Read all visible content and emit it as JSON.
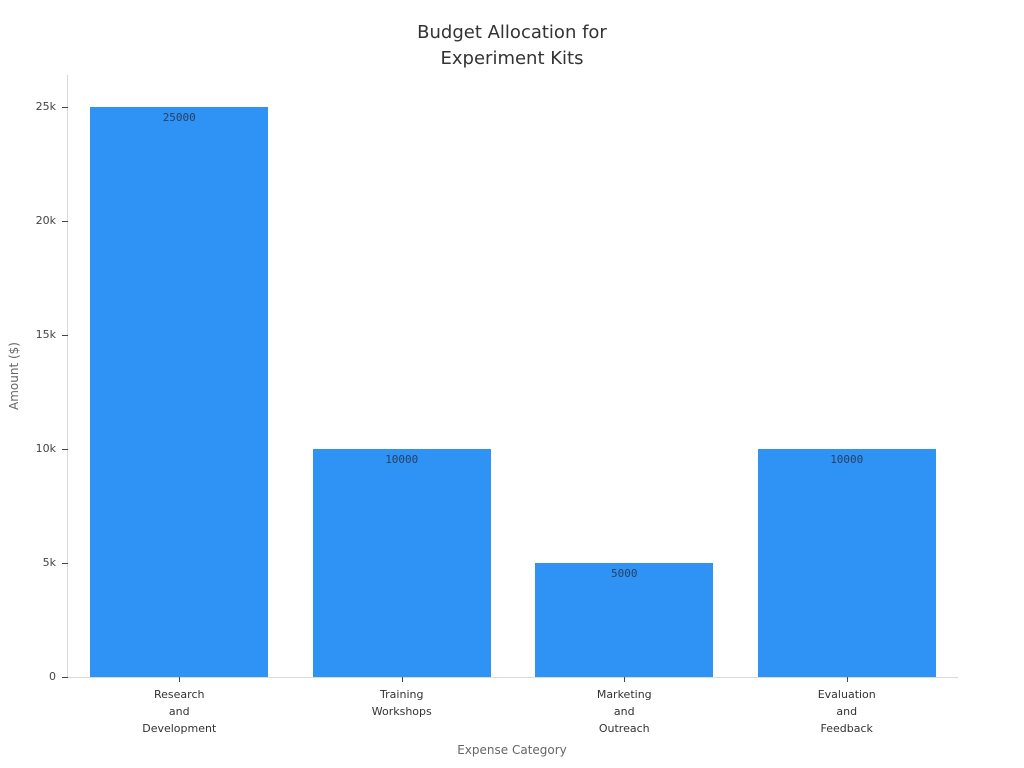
{
  "chart_data": {
    "type": "bar",
    "title": "Budget Allocation for\nExperiment Kits",
    "xlabel": "Expense Category",
    "ylabel": "Amount ($)",
    "categories": [
      "Research\nand\nDevelopment",
      "Training\nWorkshops",
      "Marketing\nand\nOutreach",
      "Evaluation\nand\nFeedback"
    ],
    "values": [
      25000,
      10000,
      5000,
      10000
    ],
    "bar_labels": [
      "25000",
      "10000",
      "5000",
      "10000"
    ],
    "ylim": [
      0,
      25000
    ],
    "yticks": [
      {
        "value": 0,
        "label": "0"
      },
      {
        "value": 5000,
        "label": "5k"
      },
      {
        "value": 10000,
        "label": "10k"
      },
      {
        "value": 15000,
        "label": "15k"
      },
      {
        "value": 20000,
        "label": "20k"
      },
      {
        "value": 25000,
        "label": "25k"
      }
    ],
    "bar_color": "#2e93f5",
    "label_color": "#2a3f5f",
    "background_color": "#ffffff",
    "legend": "none",
    "grid": false
  }
}
